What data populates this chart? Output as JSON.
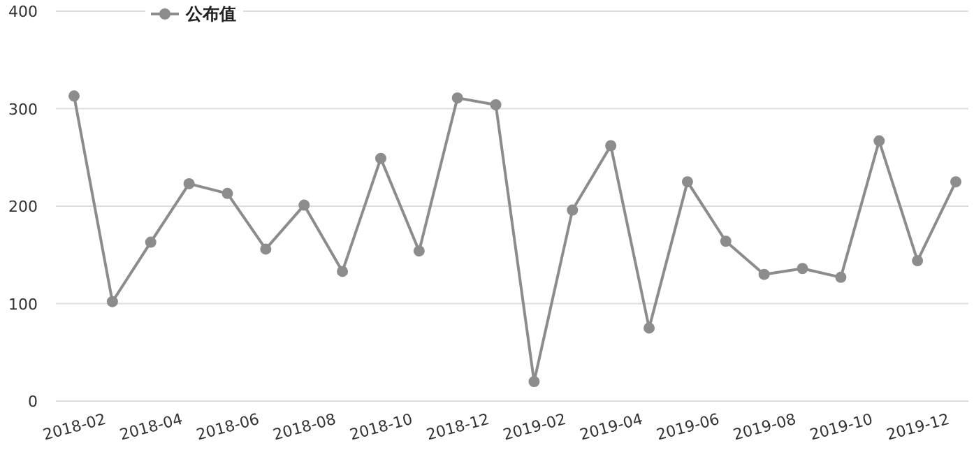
{
  "chart_data": {
    "type": "line",
    "categories": [
      null,
      "2018-02",
      null,
      "2018-04",
      null,
      "2018-06",
      null,
      "2018-08",
      null,
      "2018-10",
      null,
      "2018-12",
      null,
      "2019-02",
      null,
      "2019-04",
      null,
      "2019-06",
      null,
      "2019-08",
      null,
      "2019-10",
      null,
      "2019-12"
    ],
    "series": [
      {
        "name": "公布值",
        "color": "#8c8c8c",
        "values": [
          313,
          102,
          163,
          223,
          213,
          156,
          201,
          133,
          249,
          154,
          311,
          304,
          20,
          196,
          262,
          75,
          225,
          164,
          130,
          136,
          127,
          267,
          144,
          225
        ]
      }
    ],
    "ylim": [
      0,
      400
    ],
    "yticks": [
      0,
      100,
      200,
      300,
      400
    ],
    "grid": "y",
    "legend": "top left",
    "marker": "circle",
    "line_style": "solid"
  }
}
